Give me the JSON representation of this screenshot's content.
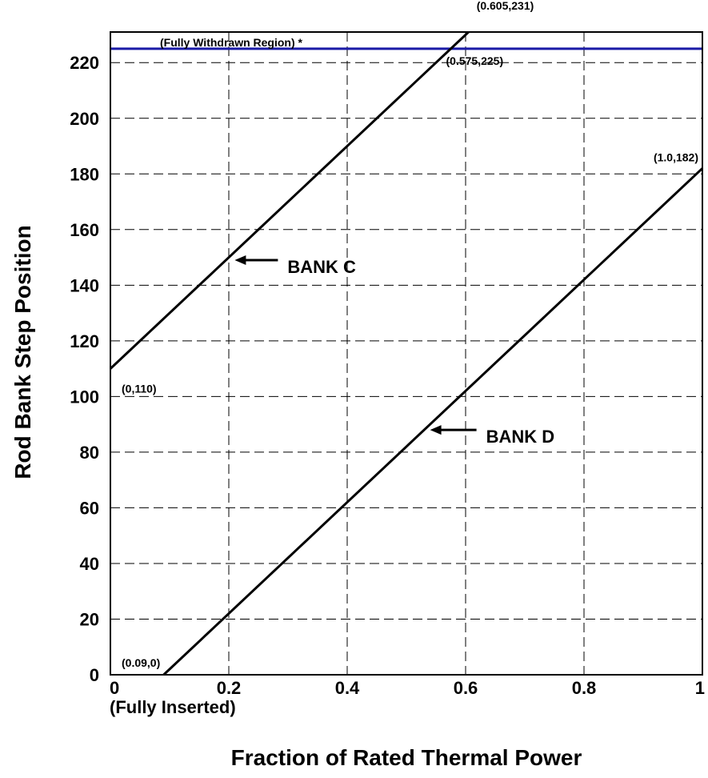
{
  "chart_data": {
    "type": "line",
    "xlabel": "Fraction of Rated Thermal Power",
    "ylabel": "Rod Bank Step Position",
    "xlim": [
      0,
      1
    ],
    "ylim": [
      0,
      231
    ],
    "x_ticks": [
      {
        "value": 0,
        "label": "0"
      },
      {
        "value": 0.2,
        "label": "0.2"
      },
      {
        "value": 0.4,
        "label": "0.4"
      },
      {
        "value": 0.6,
        "label": "0.6"
      },
      {
        "value": 0.8,
        "label": "0.8"
      },
      {
        "value": 1,
        "label": "1"
      }
    ],
    "x_tick_sublabel": "(Fully Inserted)",
    "y_ticks": [
      0,
      20,
      40,
      60,
      80,
      100,
      120,
      140,
      160,
      180,
      200,
      220
    ],
    "grid": true,
    "grid_style": "dashed",
    "series": [
      {
        "name": "BANK C",
        "x": [
          0,
          0.605
        ],
        "y": [
          110,
          231
        ],
        "color": "#000000"
      },
      {
        "name": "BANK D",
        "x": [
          0.09,
          1.0
        ],
        "y": [
          0,
          182
        ],
        "color": "#000000"
      }
    ],
    "reference_line": {
      "y": 225,
      "label": "(Fully Withdrawn Region) *",
      "color": "#1a1aa6"
    },
    "point_labels": [
      {
        "text": "(0.605,231)",
        "x": 0.605,
        "y": 231
      },
      {
        "text": "(0.575,225)",
        "x": 0.575,
        "y": 225
      },
      {
        "text": "(1.0,182)",
        "x": 1.0,
        "y": 182
      },
      {
        "text": "(0,110)",
        "x": 0,
        "y": 110
      },
      {
        "text": "(0.09,0)",
        "x": 0.09,
        "y": 0
      }
    ],
    "series_labels": [
      {
        "text": "BANK C",
        "arrow_to": {
          "x": 0.21,
          "y": 149
        }
      },
      {
        "text": "BANK D",
        "arrow_to": {
          "x": 0.54,
          "y": 88
        }
      }
    ]
  }
}
